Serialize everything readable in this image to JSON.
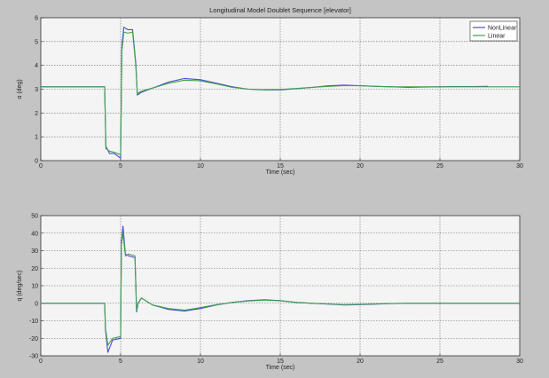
{
  "chart_data": [
    {
      "type": "line",
      "title": "Longitudinal Model Doublet Sequence [elevator]",
      "xlabel": "Time (sec)",
      "ylabel": "α (deg)",
      "xlim": [
        0,
        30
      ],
      "ylim": [
        0,
        6
      ],
      "xticks": [
        "0",
        "5",
        "10",
        "15",
        "20",
        "25",
        "30"
      ],
      "yticks": [
        "0",
        "1",
        "2",
        "3",
        "4",
        "5",
        "6"
      ],
      "grid": true,
      "legend_position": "top-right",
      "colors": {
        "NonLinear": "#4a4ad8",
        "Linear": "#3fa14a"
      },
      "series": [
        {
          "name": "NonLinear",
          "x": [
            0,
            4,
            4.08,
            4.3,
            4.6,
            5.0,
            5.08,
            5.2,
            5.45,
            5.75,
            5.95,
            6.05,
            6.25,
            7,
            8,
            9,
            10,
            11,
            12,
            13,
            14,
            15,
            16,
            17,
            18,
            19,
            20,
            21,
            22,
            23,
            24,
            25,
            26,
            27,
            28
          ],
          "y": [
            3.1,
            3.1,
            0.6,
            0.3,
            0.3,
            0.1,
            4.8,
            5.6,
            5.5,
            5.5,
            4.1,
            2.75,
            2.85,
            3.05,
            3.3,
            3.45,
            3.4,
            3.25,
            3.1,
            3.0,
            2.97,
            2.97,
            3.02,
            3.08,
            3.14,
            3.17,
            3.15,
            3.12,
            3.1,
            3.08,
            3.09,
            3.1,
            3.11,
            3.11,
            3.12
          ]
        },
        {
          "name": "Linear",
          "x": [
            0,
            4,
            4.08,
            4.3,
            4.6,
            5.0,
            5.08,
            5.2,
            5.45,
            5.75,
            5.95,
            6.05,
            6.25,
            7,
            8,
            9,
            10,
            11,
            12,
            13,
            14,
            15,
            16,
            17,
            18,
            19,
            20,
            21,
            22,
            23,
            24,
            25,
            26,
            27,
            28,
            29,
            30
          ],
          "y": [
            3.1,
            3.1,
            0.5,
            0.4,
            0.35,
            0.25,
            4.6,
            5.4,
            5.35,
            5.4,
            4.0,
            2.8,
            2.9,
            3.05,
            3.25,
            3.38,
            3.35,
            3.22,
            3.08,
            3.0,
            2.98,
            2.99,
            3.03,
            3.08,
            3.12,
            3.15,
            3.14,
            3.12,
            3.1,
            3.1,
            3.1,
            3.1,
            3.1,
            3.1,
            3.1,
            3.1,
            3.1
          ]
        }
      ]
    },
    {
      "type": "line",
      "title": "",
      "xlabel": "Time (sec)",
      "ylabel": "q (deg/sec)",
      "xlim": [
        0,
        30
      ],
      "ylim": [
        -30,
        50
      ],
      "xticks": [
        "0",
        "5",
        "10",
        "15",
        "20",
        "25",
        "30"
      ],
      "yticks": [
        "-30",
        "-20",
        "-10",
        "0",
        "10",
        "20",
        "30",
        "40",
        "50"
      ],
      "grid": true,
      "colors": {
        "NonLinear": "#4a4ad8",
        "Linear": "#3fa14a"
      },
      "series": [
        {
          "name": "NonLinear",
          "x": [
            0,
            4,
            4.05,
            4.2,
            4.5,
            5.0,
            5.05,
            5.15,
            5.3,
            5.5,
            5.9,
            6.0,
            6.1,
            6.3,
            7,
            8,
            9,
            10,
            11,
            12,
            13,
            14,
            15,
            16,
            17,
            18,
            19,
            20,
            21,
            22,
            23,
            24,
            25,
            26,
            27,
            28,
            29,
            30
          ],
          "y": [
            0,
            0,
            -15,
            -28,
            -21,
            -20,
            35,
            44,
            28,
            27,
            26,
            -5,
            0,
            3,
            -1,
            -3.5,
            -4.5,
            -3,
            -1,
            0.5,
            1.5,
            2,
            1.5,
            0.5,
            0,
            -0.5,
            -1,
            -0.8,
            -0.5,
            -0.2,
            0,
            0,
            0,
            0,
            0,
            0,
            0,
            0
          ]
        },
        {
          "name": "Linear",
          "x": [
            0,
            4,
            4.05,
            4.2,
            4.5,
            5.0,
            5.05,
            5.15,
            5.3,
            5.5,
            5.9,
            6.0,
            6.1,
            6.3,
            7,
            8,
            9,
            10,
            11,
            12,
            13,
            14,
            15,
            16,
            17,
            18,
            19,
            20,
            21,
            22,
            23,
            24,
            25,
            26,
            27,
            28,
            29,
            30
          ],
          "y": [
            0,
            0,
            -14,
            -24,
            -20,
            -19,
            33,
            40,
            27,
            28,
            27,
            -4,
            0,
            3,
            -1,
            -3,
            -4,
            -2.5,
            -0.8,
            0.5,
            1.3,
            1.8,
            1.4,
            0.5,
            0,
            -0.4,
            -0.8,
            -0.6,
            -0.4,
            -0.2,
            0,
            0,
            0,
            0,
            0,
            0,
            0,
            0
          ]
        }
      ]
    }
  ]
}
